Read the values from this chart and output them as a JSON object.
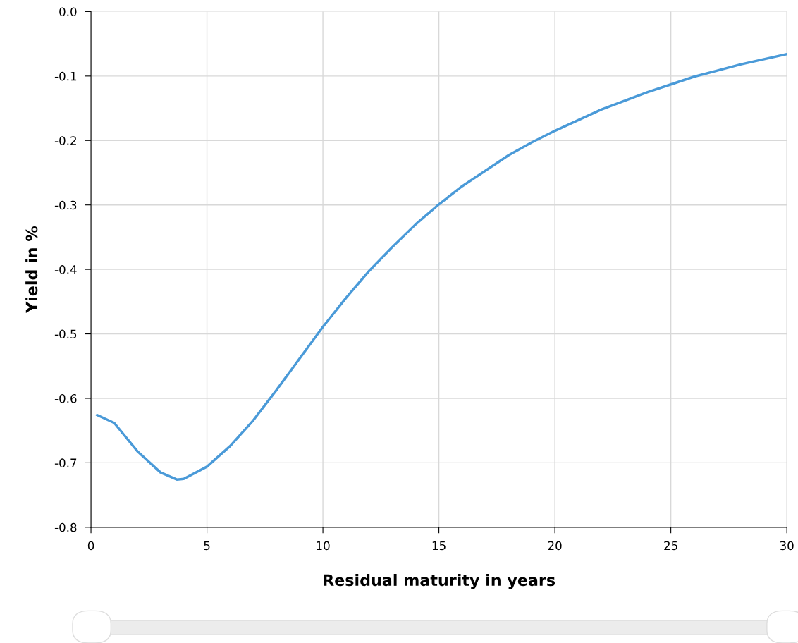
{
  "chart_data": {
    "type": "line",
    "xlabel": "Residual maturity in years",
    "ylabel": "Yield in %",
    "x": [
      0.27,
      1,
      2,
      3,
      3.7,
      4,
      5,
      6,
      7,
      8,
      9,
      10,
      11,
      12,
      13,
      14,
      15,
      16,
      17,
      18,
      19,
      20,
      22,
      24,
      25,
      26,
      28,
      30
    ],
    "series": [
      {
        "color": "#4a9ad8",
        "values": [
          -0.626,
          -0.638,
          -0.682,
          -0.715,
          -0.726,
          -0.725,
          -0.706,
          -0.674,
          -0.634,
          -0.587,
          -0.538,
          -0.489,
          -0.444,
          -0.402,
          -0.365,
          -0.33,
          -0.299,
          -0.271,
          -0.247,
          -0.223,
          -0.203,
          -0.185,
          -0.152,
          -0.125,
          -0.113,
          -0.101,
          -0.082,
          -0.066
        ]
      }
    ],
    "xlim": [
      0,
      30
    ],
    "xticks": [
      0,
      5,
      10,
      15,
      20,
      25,
      30
    ],
    "ylim": [
      -0.8,
      0.0
    ],
    "yticks": [
      -0.8,
      -0.7,
      -0.6,
      -0.5,
      -0.4,
      -0.3,
      -0.2,
      -0.1,
      {
        "value": 0,
        "label": "0.0"
      }
    ],
    "grid": true,
    "marker": "none",
    "line_style": "solid"
  }
}
